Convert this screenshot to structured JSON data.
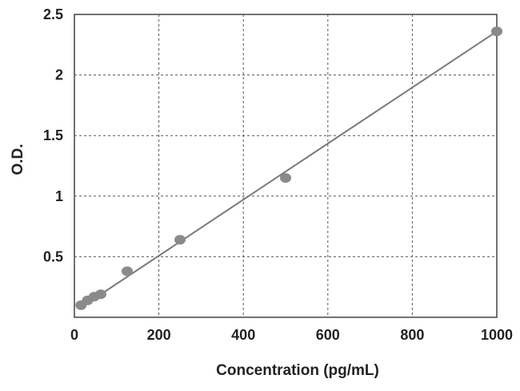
{
  "chart_data": {
    "type": "scatter",
    "title": "",
    "xlabel": "Concentration (pg/mL)",
    "ylabel": "O.D.",
    "xlim": [
      0,
      1000
    ],
    "ylim": [
      0,
      2.5
    ],
    "x_ticks": [
      0,
      200,
      400,
      600,
      800,
      1000
    ],
    "y_ticks": [
      0.5,
      1,
      1.5,
      2,
      2.5
    ],
    "x_tick_labels": [
      "0",
      "200",
      "400",
      "600",
      "800",
      "1000"
    ],
    "y_tick_labels": [
      "0.5",
      "1",
      "1.5",
      "2",
      "2.5"
    ],
    "grid": true,
    "legend": "none",
    "series": [
      {
        "points": [
          {
            "x": 15.6,
            "y": 0.1
          },
          {
            "x": 31.25,
            "y": 0.14
          },
          {
            "x": 46.9,
            "y": 0.17
          },
          {
            "x": 62.5,
            "y": 0.19
          },
          {
            "x": 125,
            "y": 0.38
          },
          {
            "x": 250,
            "y": 0.64
          },
          {
            "x": 500,
            "y": 1.15
          },
          {
            "x": 1000,
            "y": 2.36
          }
        ],
        "color": "#8a8a8a"
      }
    ],
    "trendline": {
      "type": "linear",
      "from": {
        "x": 15,
        "y": 0.08
      },
      "to": {
        "x": 1000,
        "y": 2.36
      },
      "color": "#7a7a7a"
    }
  }
}
